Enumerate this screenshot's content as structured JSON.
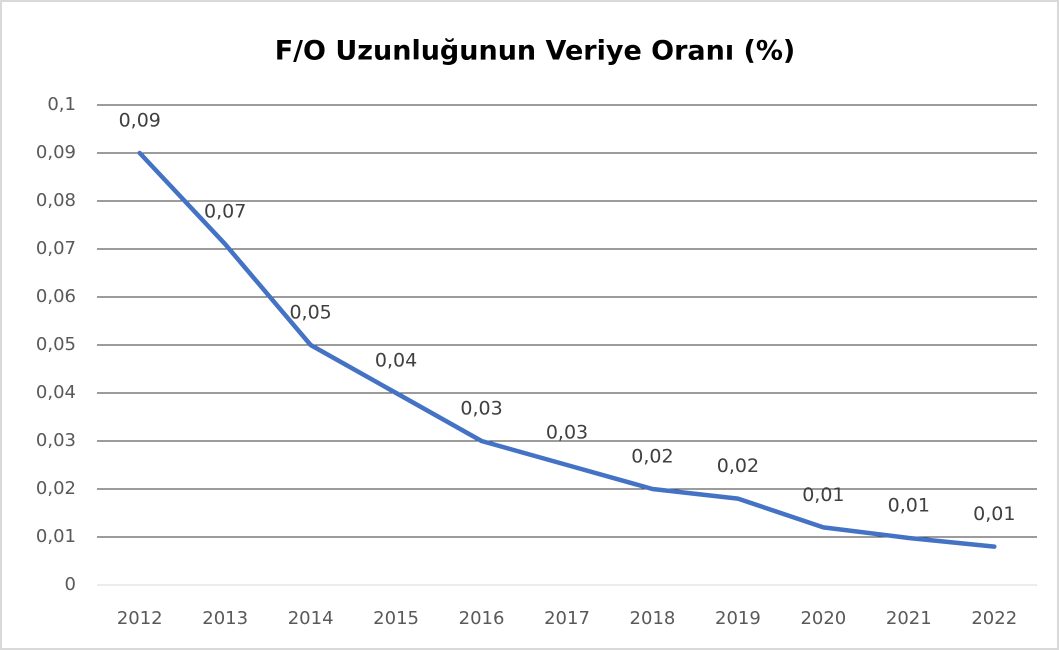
{
  "chart_data": {
    "type": "line",
    "title": "F/O Uzunluğunun Veriye Oranı (%)",
    "categories": [
      "2012",
      "2013",
      "2014",
      "2015",
      "2016",
      "2017",
      "2018",
      "2019",
      "2020",
      "2021",
      "2022"
    ],
    "series": [
      {
        "color": "#4472c4",
        "values": [
          0.09,
          0.071,
          0.05,
          0.04,
          0.03,
          0.025,
          0.02,
          0.018,
          0.012,
          0.0098,
          0.008
        ],
        "value_labels": [
          "0,09",
          "0,07",
          "0,05",
          "0,04",
          "0,03",
          "0,03",
          "0,02",
          "0,02",
          "0,01",
          "0,01",
          "0,01"
        ]
      }
    ],
    "ylim": [
      0,
      0.1
    ],
    "yticks": [
      0,
      {
        "value": 0.01,
        "label": "0,01"
      },
      {
        "value": 0.02,
        "label": "0,02"
      },
      {
        "value": 0.03,
        "label": "0,03"
      },
      {
        "value": 0.04,
        "label": "0,04"
      },
      {
        "value": 0.05,
        "label": "0,05"
      },
      {
        "value": 0.06,
        "label": "0,06"
      },
      {
        "value": 0.07,
        "label": "0,07"
      },
      {
        "value": 0.08,
        "label": "0,08"
      },
      {
        "value": 0.09,
        "label": "0,09"
      },
      {
        "value": 0.1,
        "label": "0,1"
      }
    ],
    "grid": true
  }
}
